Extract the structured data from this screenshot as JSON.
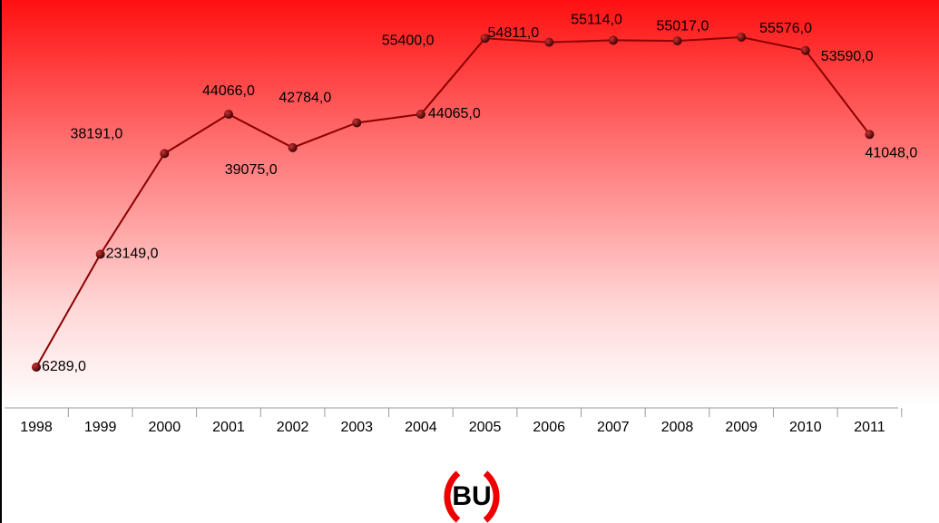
{
  "chart_data": {
    "type": "line",
    "categories": [
      "1998",
      "1999",
      "2000",
      "2001",
      "2002",
      "2003",
      "2004",
      "2005",
      "2006",
      "2007",
      "2008",
      "2009",
      "2010",
      "2011"
    ],
    "values": [
      6289,
      23149,
      38191,
      44066,
      39075,
      42784,
      44065,
      55400,
      54811,
      55114,
      55017,
      55576,
      53590,
      41048
    ],
    "value_labels": [
      "6289,0",
      "23149,0",
      "38191,0",
      "44066,0",
      "39075,0",
      "42784,0",
      "44065,0",
      "55400,0",
      "54811,0",
      "55114,0",
      "55017,0",
      "55576,0",
      "53590,0",
      "41048,0"
    ],
    "color": "#8b0000",
    "logo": "BU"
  }
}
